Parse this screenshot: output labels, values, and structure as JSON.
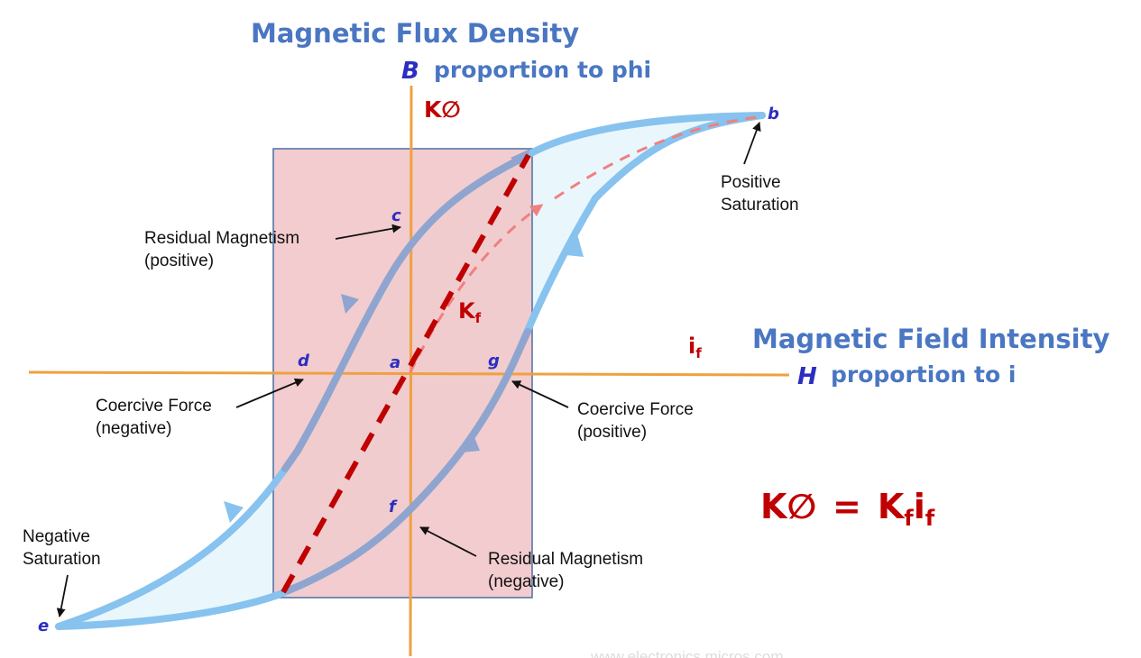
{
  "titles": {
    "flux_density": "Magnetic Flux Density",
    "b_axis_symbol": "B",
    "b_proportion": "proportion to phi",
    "field_intensity": "Magnetic Field Intensity",
    "h_axis_symbol": "H",
    "h_proportion": "proportion to i"
  },
  "points": {
    "a": "a",
    "b": "b",
    "c": "c",
    "d": "d",
    "e": "e",
    "f": "f",
    "g": "g"
  },
  "annotations": {
    "positive_saturation": [
      "Positive",
      "Saturation"
    ],
    "negative_saturation": [
      "Negative",
      "Saturation"
    ],
    "residual_positive": [
      "Residual Magnetism",
      "(positive)"
    ],
    "residual_negative": [
      "Residual Magnetism",
      "(negative)"
    ],
    "coercive_negative": [
      "Coercive Force",
      "(negative)"
    ],
    "coercive_positive": [
      "Coercive Force",
      "(positive)"
    ]
  },
  "red_labels": {
    "k_phi": "K∅",
    "k_f_base": "K",
    "k_f_sub": "f",
    "i_f_base": "i",
    "i_f_sub": "f",
    "eq_lhs": "K∅",
    "eq_equals": "=",
    "eq_k": "K",
    "eq_k_sub": "f",
    "eq_i": "i",
    "eq_i_sub": "f"
  },
  "watermark": "www.electronics.micros.com",
  "colors": {
    "axis": "#f0a040",
    "loop": "#87c3ee",
    "loop_fill": "#e9f7fd",
    "box_fill": "#f1c8cb",
    "box_stroke": "#4a6fa5",
    "dashed_line": "#c00000",
    "initial_curve": "#f08080",
    "title_blue": "#4a76c2",
    "axis_symbol": "#2c2ec0"
  }
}
